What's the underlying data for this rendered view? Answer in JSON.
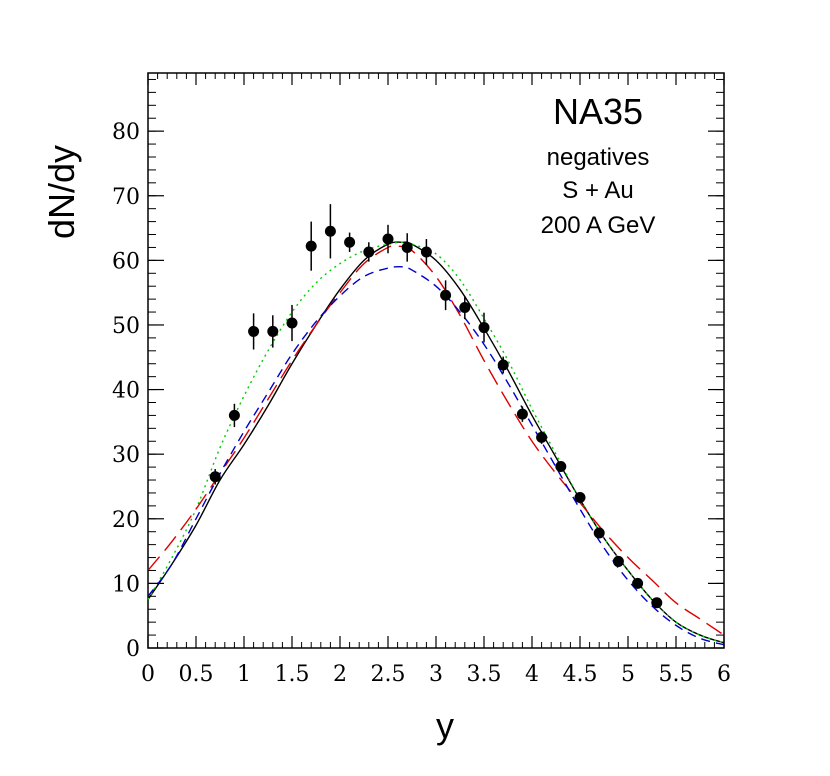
{
  "chart_data": {
    "type": "scatter",
    "xlabel": "y",
    "ylabel": "dN/dy",
    "xlim": [
      0,
      6
    ],
    "ylim": [
      0,
      89
    ],
    "xticks": [
      0,
      0.5,
      1,
      1.5,
      2,
      2.5,
      3,
      3.5,
      4,
      4.5,
      5,
      5.5,
      6
    ],
    "xtick_labels": [
      "0",
      "0.5",
      "1",
      "1.5",
      "2",
      "2.5",
      "3",
      "3.5",
      "4",
      "4.5",
      "5",
      "5.5",
      "6"
    ],
    "yticks": [
      0,
      10,
      20,
      30,
      40,
      50,
      60,
      70,
      80
    ],
    "ytick_labels": [
      "0",
      "10",
      "20",
      "30",
      "40",
      "50",
      "60",
      "70",
      "80"
    ],
    "grid": false,
    "annotations": [
      "NA35",
      "negatives",
      "S + Au",
      "200 A GeV"
    ],
    "points": {
      "x": [
        0.7,
        0.9,
        1.1,
        1.3,
        1.5,
        1.7,
        1.9,
        2.1,
        2.3,
        2.5,
        2.7,
        2.9,
        3.1,
        3.3,
        3.5,
        3.7,
        3.9,
        4.1,
        4.3,
        4.5,
        4.7,
        4.9,
        5.1,
        5.3
      ],
      "y": [
        26.5,
        36,
        49,
        49,
        50.3,
        62.2,
        64.5,
        62.8,
        61.3,
        63.3,
        62,
        61.3,
        54.6,
        52.7,
        49.6,
        43.8,
        36.2,
        32.6,
        28.1,
        23.3,
        17.8,
        13.4,
        10,
        7
      ],
      "err": [
        1.2,
        1.8,
        2.8,
        2.5,
        2.8,
        3.8,
        4.2,
        1.5,
        1.5,
        2.2,
        2.2,
        2.0,
        2.3,
        1.8,
        2.3,
        1.3,
        1.2,
        1.0,
        0.8,
        0.7,
        0.6,
        0.5,
        0.5,
        0.4
      ]
    },
    "series": [
      {
        "color": "#000000",
        "dash": "solid",
        "x": [
          0,
          0.25,
          0.5,
          0.75,
          1,
          1.25,
          1.5,
          1.75,
          2,
          2.25,
          2.5,
          2.65,
          2.75,
          3,
          3.25,
          3.5,
          3.75,
          4,
          4.25,
          4.5,
          4.75,
          5,
          5.25,
          5.5,
          5.75,
          6
        ],
        "y": [
          7.5,
          13,
          19,
          26,
          31.5,
          37.5,
          44,
          50,
          55.5,
          60,
          62.5,
          62.8,
          62.5,
          60,
          55.5,
          49.5,
          43,
          36,
          29.5,
          23,
          17,
          12,
          7.5,
          4,
          2,
          0.8
        ]
      },
      {
        "color": "#00cc00",
        "dash": "dotted",
        "x": [
          0,
          0.25,
          0.5,
          0.75,
          1,
          1.25,
          1.5,
          1.75,
          2,
          2.25,
          2.5,
          2.65,
          2.75,
          3,
          3.25,
          3.5,
          3.75,
          4,
          4.25,
          4.5,
          4.75,
          5,
          5.25,
          5.5,
          5.75,
          6
        ],
        "y": [
          7.5,
          14,
          21.5,
          31,
          39,
          46,
          52,
          56.5,
          59.5,
          61.5,
          62.5,
          62.8,
          62.5,
          61,
          57,
          51,
          44.5,
          37,
          30,
          23,
          17,
          12,
          7.5,
          4,
          2,
          0.8
        ]
      },
      {
        "color": "#dd0000",
        "dash": "long",
        "x": [
          0,
          0.25,
          0.5,
          0.75,
          1,
          1.25,
          1.5,
          1.75,
          2,
          2.25,
          2.5,
          2.6,
          2.75,
          3,
          3.25,
          3.5,
          3.75,
          4,
          4.25,
          4.5,
          4.75,
          5,
          5.25,
          5.5,
          5.75,
          6
        ],
        "y": [
          12,
          16.5,
          21.5,
          27,
          32.5,
          38.5,
          44.5,
          50,
          55,
          59.5,
          62,
          62.2,
          61.5,
          57.5,
          51.5,
          44.5,
          38,
          32,
          27,
          22.5,
          18,
          14,
          10.5,
          7,
          4.5,
          2
        ]
      },
      {
        "color": "#0000cc",
        "dash": "short",
        "x": [
          0,
          0.25,
          0.5,
          0.75,
          1,
          1.25,
          1.5,
          1.75,
          2,
          2.25,
          2.5,
          2.65,
          2.75,
          3,
          3.25,
          3.5,
          3.75,
          4,
          4.25,
          4.5,
          4.75,
          5,
          5.25,
          5.5,
          5.75,
          6
        ],
        "y": [
          8,
          13,
          20,
          27,
          33.5,
          39.5,
          45.5,
          50.5,
          54.5,
          57.5,
          58.8,
          59,
          58.5,
          56,
          52,
          47,
          41,
          34.5,
          28,
          21.5,
          15.5,
          10.5,
          6.5,
          3.5,
          1.5,
          0.5
        ]
      }
    ]
  }
}
